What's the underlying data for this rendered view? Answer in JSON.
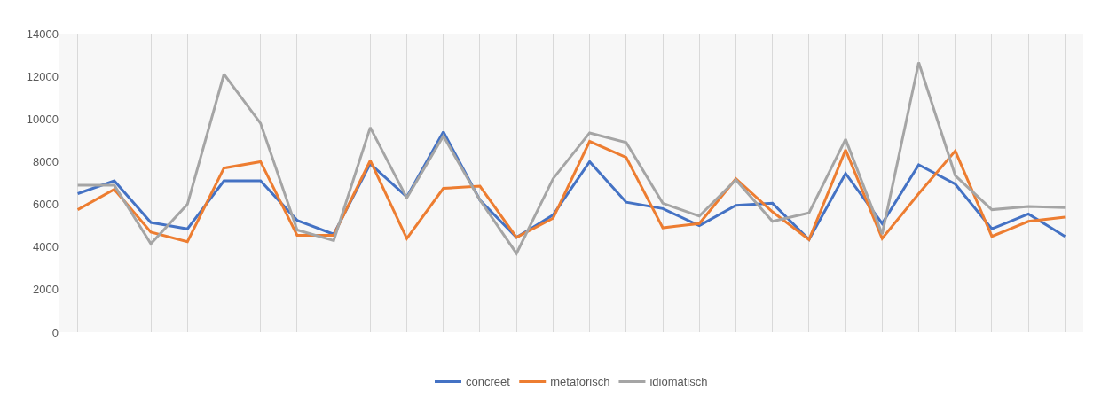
{
  "chart_data": {
    "type": "line",
    "categories": [
      null,
      null,
      null,
      null,
      null,
      null,
      null,
      null,
      null,
      null,
      null,
      null,
      null,
      null,
      null,
      null,
      null,
      null,
      null,
      null,
      null,
      null,
      null,
      null,
      null,
      null,
      null,
      null
    ],
    "series": [
      {
        "name": "concreet",
        "color": "#4472c4",
        "values": [
          6500,
          7100,
          5150,
          4850,
          7100,
          7100,
          5250,
          4600,
          7900,
          6350,
          9400,
          6200,
          4450,
          5500,
          8000,
          6100,
          5800,
          5000,
          5950,
          6050,
          4350,
          7450,
          5100,
          7850,
          6950,
          4850,
          5550,
          4500
        ]
      },
      {
        "name": "metaforisch",
        "color": "#ed7d31",
        "values": [
          5750,
          6700,
          4700,
          4250,
          7700,
          8000,
          4550,
          4550,
          8050,
          4400,
          6750,
          6850,
          4450,
          5350,
          8950,
          8200,
          4900,
          5100,
          7200,
          5650,
          4350,
          8550,
          4400,
          6500,
          8500,
          4500,
          5200,
          5400
        ]
      },
      {
        "name": "idiomatisch",
        "color": "#a5a5a5",
        "values": [
          6900,
          6900,
          4150,
          6000,
          12100,
          9800,
          4800,
          4300,
          9600,
          6300,
          9200,
          6200,
          3700,
          7200,
          9350,
          8900,
          6050,
          5450,
          7150,
          5200,
          5600,
          9050,
          4600,
          12650,
          7350,
          5750,
          5900,
          5850
        ]
      }
    ],
    "ylim": [
      0,
      14000
    ],
    "yticks": [
      0,
      2000,
      4000,
      6000,
      8000,
      10000,
      12000,
      14000
    ],
    "grid": "x",
    "legend": "bottom",
    "line_style": "solid",
    "marker": "none"
  }
}
